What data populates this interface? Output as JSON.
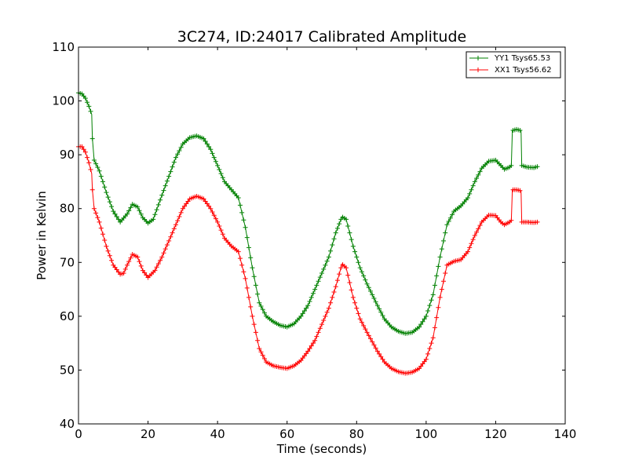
{
  "chart_data": {
    "type": "line",
    "title": "3C274, ID:24017 Calibrated Amplitude",
    "xlabel": "Time (seconds)",
    "ylabel": "Power in Kelvin",
    "xlim": [
      0,
      140
    ],
    "ylim": [
      40,
      110
    ],
    "xticks": [
      0,
      20,
      40,
      60,
      80,
      100,
      120,
      140
    ],
    "yticks": [
      40,
      50,
      60,
      70,
      80,
      90,
      100,
      110
    ],
    "grid": false,
    "legend_position": "top-right",
    "marker": "plus",
    "series": [
      {
        "name": "YY1 Tsys65.53",
        "color": "#008000",
        "points": [
          [
            0,
            101.5
          ],
          [
            1,
            101.3
          ],
          [
            2,
            100.5
          ],
          [
            3,
            99
          ],
          [
            3.8,
            97.5
          ],
          [
            4,
            93
          ],
          [
            4.5,
            89
          ],
          [
            6,
            87
          ],
          [
            8,
            83
          ],
          [
            10,
            79.5
          ],
          [
            12,
            77.5
          ],
          [
            14,
            79
          ],
          [
            15.5,
            80.8
          ],
          [
            17,
            80.3
          ],
          [
            18.5,
            78.3
          ],
          [
            20,
            77.3
          ],
          [
            21.5,
            78
          ],
          [
            24,
            82.5
          ],
          [
            26,
            86
          ],
          [
            28,
            89.5
          ],
          [
            30,
            92
          ],
          [
            32,
            93.2
          ],
          [
            34,
            93.5
          ],
          [
            36,
            93
          ],
          [
            38,
            91
          ],
          [
            40,
            88
          ],
          [
            42,
            85
          ],
          [
            44,
            83.5
          ],
          [
            46,
            82
          ],
          [
            48,
            76.5
          ],
          [
            50,
            69
          ],
          [
            52,
            62.5
          ],
          [
            54,
            60
          ],
          [
            56,
            59
          ],
          [
            58,
            58.3
          ],
          [
            60,
            58
          ],
          [
            62,
            58.6
          ],
          [
            64,
            60
          ],
          [
            66,
            62
          ],
          [
            68,
            65
          ],
          [
            70,
            68
          ],
          [
            72,
            71
          ],
          [
            74,
            75.5
          ],
          [
            75.8,
            78.5
          ],
          [
            77,
            78
          ],
          [
            79,
            73
          ],
          [
            81,
            69
          ],
          [
            83,
            66
          ],
          [
            86,
            62
          ],
          [
            88,
            59.5
          ],
          [
            90,
            58
          ],
          [
            92,
            57.2
          ],
          [
            94,
            56.8
          ],
          [
            96,
            57
          ],
          [
            98,
            58
          ],
          [
            100,
            60
          ],
          [
            102,
            64
          ],
          [
            104,
            71
          ],
          [
            106,
            77
          ],
          [
            108,
            79.5
          ],
          [
            110,
            80.5
          ],
          [
            112,
            82
          ],
          [
            114,
            85
          ],
          [
            116,
            87.5
          ],
          [
            118,
            88.8
          ],
          [
            120,
            89
          ],
          [
            121.5,
            88
          ],
          [
            122.5,
            87.3
          ],
          [
            124,
            87.7
          ],
          [
            124.5,
            88
          ],
          [
            124.8,
            94.5
          ],
          [
            126,
            94.7
          ],
          [
            127.3,
            94.5
          ],
          [
            127.5,
            88
          ],
          [
            129,
            87.7
          ],
          [
            131,
            87.6
          ],
          [
            132,
            87.8
          ]
        ]
      },
      {
        "name": "XX1 Tsys56.62",
        "color": "#ff0000",
        "points": [
          [
            0,
            91.5
          ],
          [
            1,
            91.5
          ],
          [
            2,
            90.5
          ],
          [
            3,
            88.5
          ],
          [
            3.8,
            86.5
          ],
          [
            4,
            83.5
          ],
          [
            4.5,
            80
          ],
          [
            6,
            77.5
          ],
          [
            8,
            73
          ],
          [
            10,
            69.5
          ],
          [
            12,
            67.8
          ],
          [
            13,
            68
          ],
          [
            14,
            69.5
          ],
          [
            15.5,
            71.5
          ],
          [
            17,
            71
          ],
          [
            18.5,
            68.5
          ],
          [
            20,
            67.2
          ],
          [
            22,
            68.5
          ],
          [
            24,
            71
          ],
          [
            26,
            74
          ],
          [
            28,
            77
          ],
          [
            30,
            80
          ],
          [
            32,
            81.8
          ],
          [
            34,
            82.3
          ],
          [
            36,
            81.8
          ],
          [
            38,
            80
          ],
          [
            40,
            77.5
          ],
          [
            42,
            74.5
          ],
          [
            44,
            73
          ],
          [
            46,
            72
          ],
          [
            48,
            67
          ],
          [
            50,
            60
          ],
          [
            52,
            54
          ],
          [
            54,
            51.5
          ],
          [
            56,
            50.8
          ],
          [
            58,
            50.5
          ],
          [
            60,
            50.3
          ],
          [
            62,
            50.8
          ],
          [
            64,
            51.8
          ],
          [
            66,
            53.5
          ],
          [
            68,
            55.5
          ],
          [
            70,
            58.5
          ],
          [
            72,
            61.5
          ],
          [
            74,
            65.5
          ],
          [
            75.8,
            69.7
          ],
          [
            77,
            69
          ],
          [
            79,
            63.5
          ],
          [
            81,
            59.5
          ],
          [
            83,
            57
          ],
          [
            86,
            53.5
          ],
          [
            88,
            51.5
          ],
          [
            90,
            50.3
          ],
          [
            92,
            49.7
          ],
          [
            94,
            49.4
          ],
          [
            96,
            49.6
          ],
          [
            98,
            50.3
          ],
          [
            100,
            52
          ],
          [
            102,
            56
          ],
          [
            104,
            63.5
          ],
          [
            106,
            69.5
          ],
          [
            108,
            70.2
          ],
          [
            110,
            70.5
          ],
          [
            112,
            72
          ],
          [
            114,
            75
          ],
          [
            116,
            77.5
          ],
          [
            118,
            78.8
          ],
          [
            120,
            78.7
          ],
          [
            121.5,
            77.5
          ],
          [
            122.5,
            77
          ],
          [
            124,
            77.5
          ],
          [
            124.5,
            77.8
          ],
          [
            124.8,
            83.5
          ],
          [
            126,
            83.5
          ],
          [
            127.3,
            83.3
          ],
          [
            127.5,
            77.5
          ],
          [
            129,
            77.5
          ],
          [
            131,
            77.4
          ],
          [
            132,
            77.5
          ]
        ]
      }
    ]
  }
}
